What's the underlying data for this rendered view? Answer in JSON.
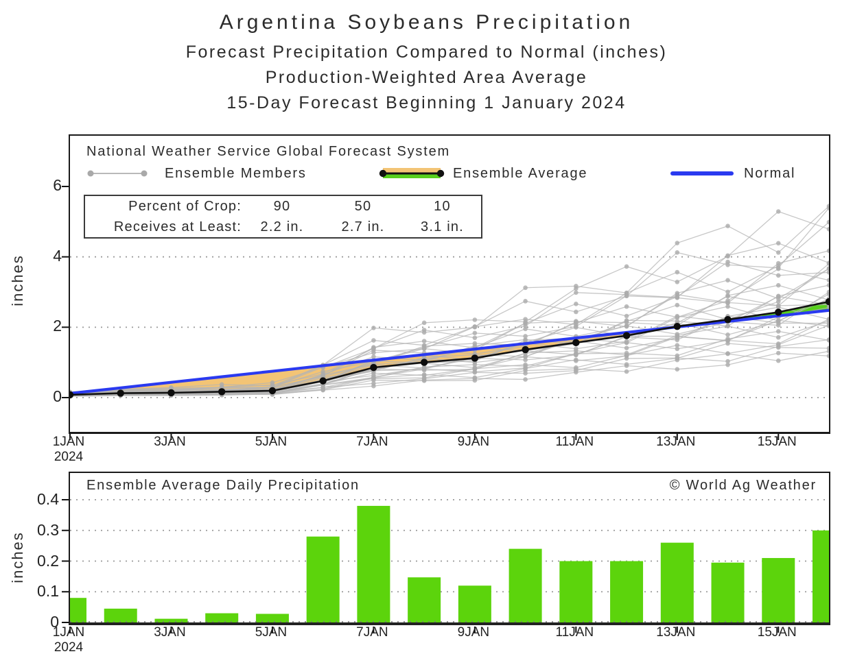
{
  "title": {
    "line1": "Argentina Soybeans Precipitation",
    "line2": "Forecast Precipitation Compared to Normal (inches)",
    "line3": "Production-Weighted Area Average",
    "line4": "15-Day Forecast Beginning 1 January 2024"
  },
  "colors": {
    "bar_green": "#5cd40c",
    "fill_orange": "#f3c475",
    "fill_green": "#58cf1e",
    "normal_blue": "#2a3af0",
    "member_gray": "#b4b4b4",
    "average_black": "#111111",
    "grid_gray": "#9a9a9a",
    "text": "#2b2b2b",
    "border": "#1a1a1a"
  },
  "top_chart": {
    "source_label": "National Weather Service Global Forecast System",
    "legend": {
      "members_label": "Ensemble Members",
      "average_label": "Ensemble Average",
      "normal_label": "Normal"
    },
    "crop_table": {
      "row1_label": "Percent of Crop:",
      "row1_values": [
        "90",
        "50",
        "10"
      ],
      "row2_label": "Receives at Least:",
      "row2_values": [
        "2.2 in.",
        "2.7 in.",
        "3.1 in."
      ]
    },
    "ylabel": "inches"
  },
  "bottom_chart": {
    "title": "Ensemble Average Daily Precipitation",
    "credit": "© World Ag Weather",
    "ylabel": "inches"
  },
  "chart_data": [
    {
      "type": "line",
      "title": "15-Day cumulative forecast precipitation vs normal",
      "x_days": [
        1,
        2,
        3,
        4,
        5,
        6,
        7,
        8,
        9,
        10,
        11,
        12,
        13,
        14,
        15,
        16
      ],
      "x_tick_days": [
        1,
        3,
        5,
        7,
        9,
        11,
        13,
        15
      ],
      "x_tick_labels": [
        "1JAN",
        "3JAN",
        "5JAN",
        "7JAN",
        "9JAN",
        "11JAN",
        "13JAN",
        "15JAN"
      ],
      "x_first_tick_sublabel": "2024",
      "ylabel": "inches",
      "ylim": [
        -0.97,
        7.45
      ],
      "yticks": [
        0,
        2,
        4,
        6
      ],
      "grid_y": [
        0,
        2,
        4
      ],
      "legend_position": "top-inside",
      "series": [
        {
          "name": "Ensemble Average",
          "color": "#111111",
          "values": [
            0.08,
            0.125,
            0.137,
            0.167,
            0.195,
            0.475,
            0.855,
            1.002,
            1.122,
            1.362,
            1.562,
            1.762,
            2.022,
            2.217,
            2.427,
            2.727
          ]
        },
        {
          "name": "Normal",
          "color": "#2a3af0",
          "values": [
            0.12,
            0.277,
            0.435,
            0.592,
            0.749,
            0.907,
            1.064,
            1.221,
            1.379,
            1.536,
            1.693,
            1.851,
            2.008,
            2.165,
            2.323,
            2.48
          ]
        }
      ],
      "ensemble_members": {
        "name": "Ensemble Members",
        "count": 30,
        "color": "#b4b4b4",
        "multipliers": [
          0.45,
          0.5,
          0.55,
          0.6,
          0.65,
          0.7,
          0.74,
          0.78,
          0.82,
          0.86,
          0.9,
          0.93,
          0.96,
          0.99,
          1.02,
          1.05,
          1.08,
          1.12,
          1.16,
          1.2,
          1.25,
          1.3,
          1.36,
          1.42,
          1.5,
          1.58,
          1.66,
          1.76,
          1.88,
          2.0
        ],
        "jitter_amp": 0.16,
        "final_value_range": [
          1.2,
          5.5
        ]
      },
      "fill_below_normal": "#f3c475",
      "fill_above_normal": "#58cf1e"
    },
    {
      "type": "bar",
      "title": "Ensemble Average Daily Precipitation",
      "x_days": [
        1,
        2,
        3,
        4,
        5,
        6,
        7,
        8,
        9,
        10,
        11,
        12,
        13,
        14,
        15,
        16
      ],
      "x_tick_days": [
        1,
        3,
        5,
        7,
        9,
        11,
        13,
        15
      ],
      "x_tick_labels": [
        "1JAN",
        "3JAN",
        "5JAN",
        "7JAN",
        "9JAN",
        "11JAN",
        "13JAN",
        "15JAN"
      ],
      "x_first_tick_sublabel": "2024",
      "ylabel": "inches",
      "ylim": [
        0,
        0.4875
      ],
      "yticks": [
        0,
        0.1,
        0.2,
        0.3,
        0.4
      ],
      "grid_y": [
        0.1,
        0.2,
        0.3,
        0.4
      ],
      "bar_color": "#5cd40c",
      "values": [
        0.08,
        0.045,
        0.012,
        0.03,
        0.028,
        0.28,
        0.38,
        0.147,
        0.12,
        0.24,
        0.2,
        0.2,
        0.26,
        0.195,
        0.21,
        0.3
      ]
    }
  ]
}
